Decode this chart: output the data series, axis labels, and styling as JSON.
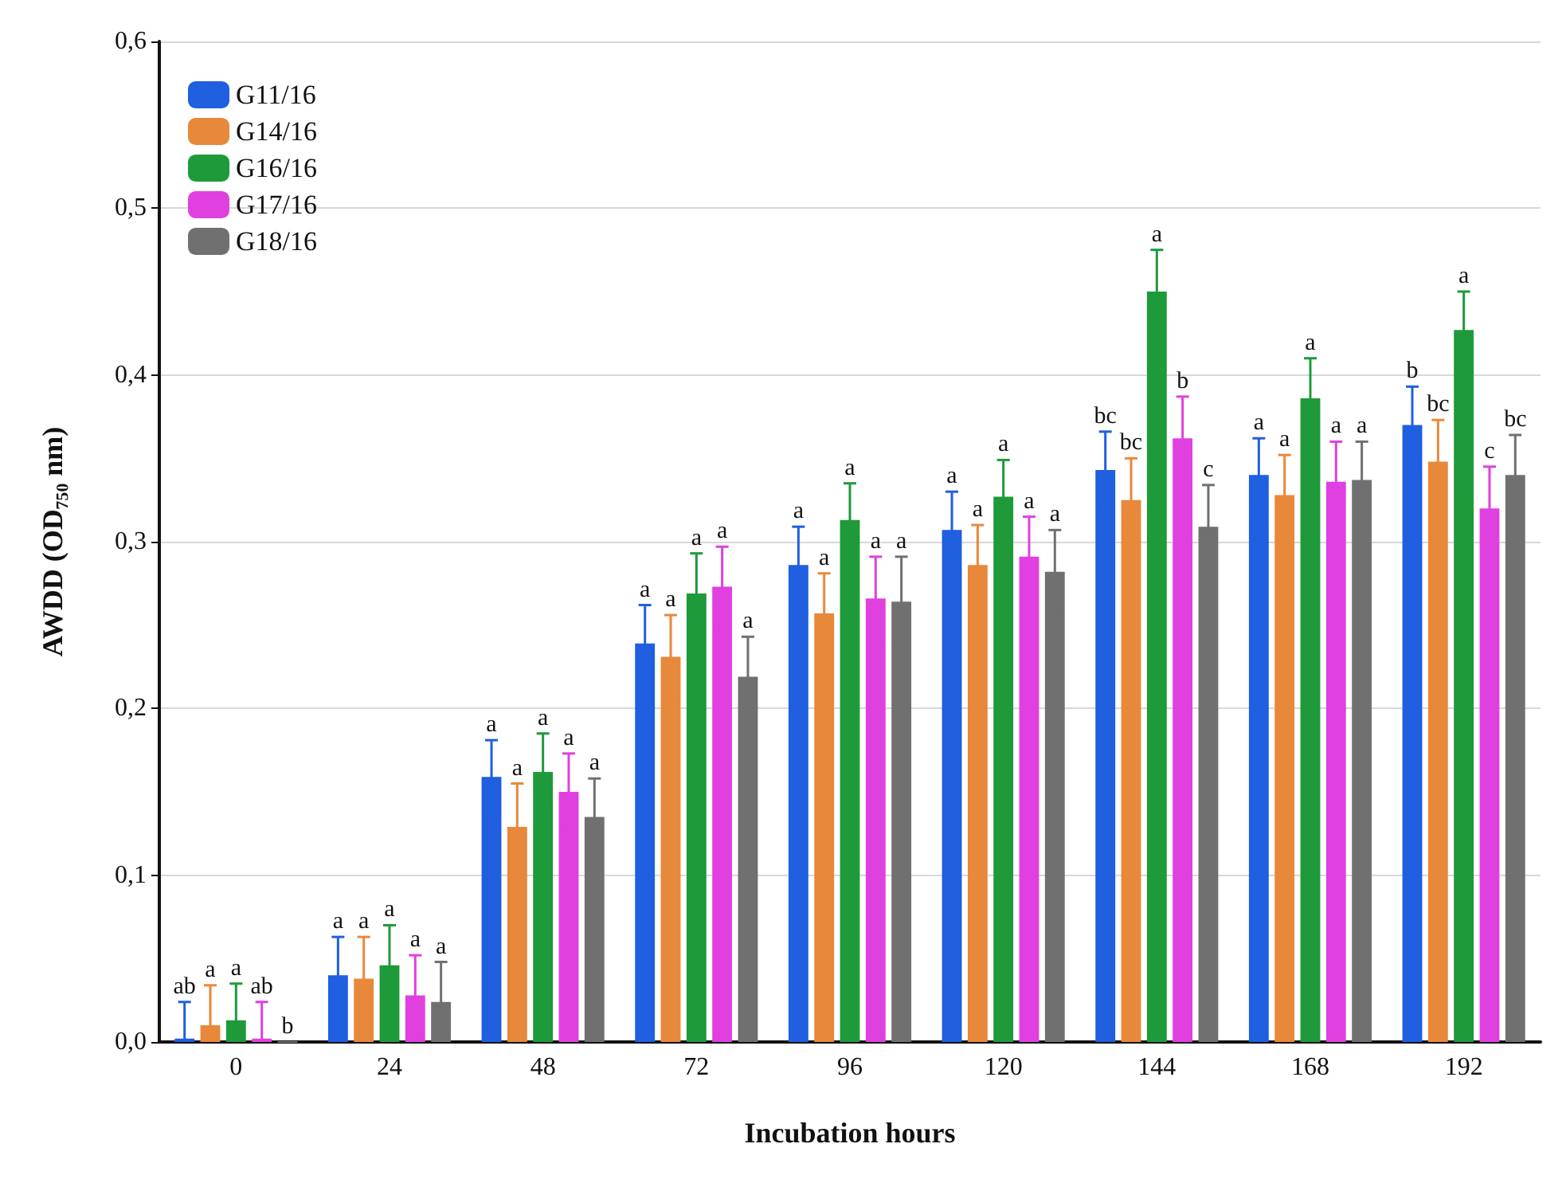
{
  "chart_data": {
    "type": "bar",
    "xlabel": "Incubation hours",
    "ylabel": "AWDD (OD₇₅₀ nm)",
    "categories": [
      "0",
      "24",
      "48",
      "72",
      "96",
      "120",
      "144",
      "168",
      "192"
    ],
    "ylim": [
      0,
      0.6
    ],
    "yticks": [
      {
        "value": 0,
        "label": "0,0"
      },
      {
        "value": 0.1,
        "label": "0,1"
      },
      {
        "value": 0.2,
        "label": "0,2"
      },
      {
        "value": 0.3,
        "label": "0,3"
      },
      {
        "value": 0.4,
        "label": "0,4"
      },
      {
        "value": 0.5,
        "label": "0,5"
      },
      {
        "value": 0.6,
        "label": "0,6"
      }
    ],
    "grid": "y",
    "legend": "top left",
    "series": [
      {
        "name": "G11/16",
        "color": "#1f5fe0",
        "values": [
          0.002,
          0.04,
          0.159,
          0.239,
          0.286,
          0.307,
          0.343,
          0.34,
          0.37
        ],
        "errors": [
          0.022,
          0.023,
          0.022,
          0.023,
          0.023,
          0.023,
          0.023,
          0.022,
          0.023
        ],
        "value_labels": [
          "ab",
          "a",
          "a",
          "a",
          "a",
          "a",
          "bc",
          "a",
          "b"
        ]
      },
      {
        "name": "G14/16",
        "color": "#e8883a",
        "values": [
          0.01,
          0.038,
          0.129,
          0.231,
          0.257,
          0.286,
          0.325,
          0.328,
          0.348
        ],
        "errors": [
          0.024,
          0.025,
          0.026,
          0.025,
          0.024,
          0.024,
          0.025,
          0.024,
          0.025
        ],
        "value_labels": [
          "a",
          "a",
          "a",
          "a",
          "a",
          "a",
          "bc",
          "a",
          "bc"
        ]
      },
      {
        "name": "G16/16",
        "color": "#1e9a3a",
        "values": [
          0.013,
          0.046,
          0.162,
          0.269,
          0.313,
          0.327,
          0.45,
          0.386,
          0.427
        ],
        "errors": [
          0.022,
          0.024,
          0.023,
          0.024,
          0.022,
          0.022,
          0.025,
          0.024,
          0.023
        ],
        "value_labels": [
          "a",
          "a",
          "a",
          "a",
          "a",
          "a",
          "a",
          "a",
          "a"
        ]
      },
      {
        "name": "G17/16",
        "color": "#e040e0",
        "values": [
          0.002,
          0.028,
          0.15,
          0.273,
          0.266,
          0.291,
          0.362,
          0.336,
          0.32
        ],
        "errors": [
          0.022,
          0.024,
          0.023,
          0.024,
          0.025,
          0.024,
          0.025,
          0.024,
          0.025
        ],
        "value_labels": [
          "ab",
          "a",
          "a",
          "a",
          "a",
          "a",
          "b",
          "a",
          "c"
        ]
      },
      {
        "name": "G18/16",
        "color": "#707070",
        "values": [
          0,
          0.024,
          0.135,
          0.219,
          0.264,
          0.282,
          0.309,
          0.337,
          0.34
        ],
        "errors": [
          null,
          0.024,
          0.023,
          0.024,
          0.027,
          0.025,
          0.025,
          0.023,
          0.024
        ],
        "value_labels": [
          "b",
          "a",
          "a",
          "a",
          "a",
          "a",
          "c",
          "a",
          "bc"
        ]
      }
    ]
  }
}
